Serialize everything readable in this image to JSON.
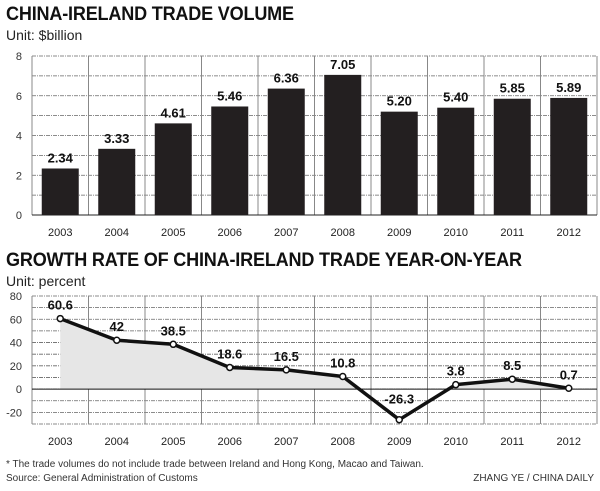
{
  "footer": {
    "note": "* The trade volumes do not include trade between Ireland and Hong Kong, Macao and Taiwan.",
    "source": "Source: General Administration of Customs",
    "credit": "ZHANG YE / CHINA DAILY"
  },
  "chart_data": [
    {
      "type": "bar",
      "title": "CHINA-IRELAND TRADE VOLUME",
      "subtitle": "Unit: $billion",
      "categories": [
        "2003",
        "2004",
        "2005",
        "2006",
        "2007",
        "2008",
        "2009",
        "2010",
        "2011",
        "2012"
      ],
      "values": [
        2.34,
        3.33,
        4.61,
        5.46,
        6.36,
        7.05,
        5.2,
        5.4,
        5.85,
        5.89
      ],
      "labels": [
        "2.34",
        "3.33",
        "4.61",
        "5.46",
        "6.36",
        "7.05",
        "5.20",
        "5.40",
        "5.85",
        "5.89"
      ],
      "yticks": [
        "0",
        "2",
        "4",
        "6",
        "8"
      ],
      "ylim": [
        0,
        8
      ],
      "grid": true,
      "colors": {
        "bar": "#231f20"
      }
    },
    {
      "type": "line",
      "title": "GROWTH RATE OF CHINA-IRELAND TRADE YEAR-ON-YEAR",
      "subtitle": "Unit: percent",
      "categories": [
        "2003",
        "2004",
        "2005",
        "2006",
        "2007",
        "2008",
        "2009",
        "2010",
        "2011",
        "2012"
      ],
      "values": [
        60.6,
        42,
        38.5,
        18.6,
        16.5,
        10.8,
        -26.3,
        3.8,
        8.5,
        0.7
      ],
      "labels": [
        "60.6",
        "42",
        "38.5",
        "18.6",
        "16.5",
        "10.8",
        "-26.3",
        "3.8",
        "8.5",
        "0.7"
      ],
      "yticks": [
        "80",
        "60",
        "40",
        "20",
        "0",
        "-20"
      ],
      "ylim": [
        -30,
        80
      ],
      "grid": true,
      "colors": {
        "line": "#111111",
        "area": "#e6e6e6"
      }
    }
  ]
}
